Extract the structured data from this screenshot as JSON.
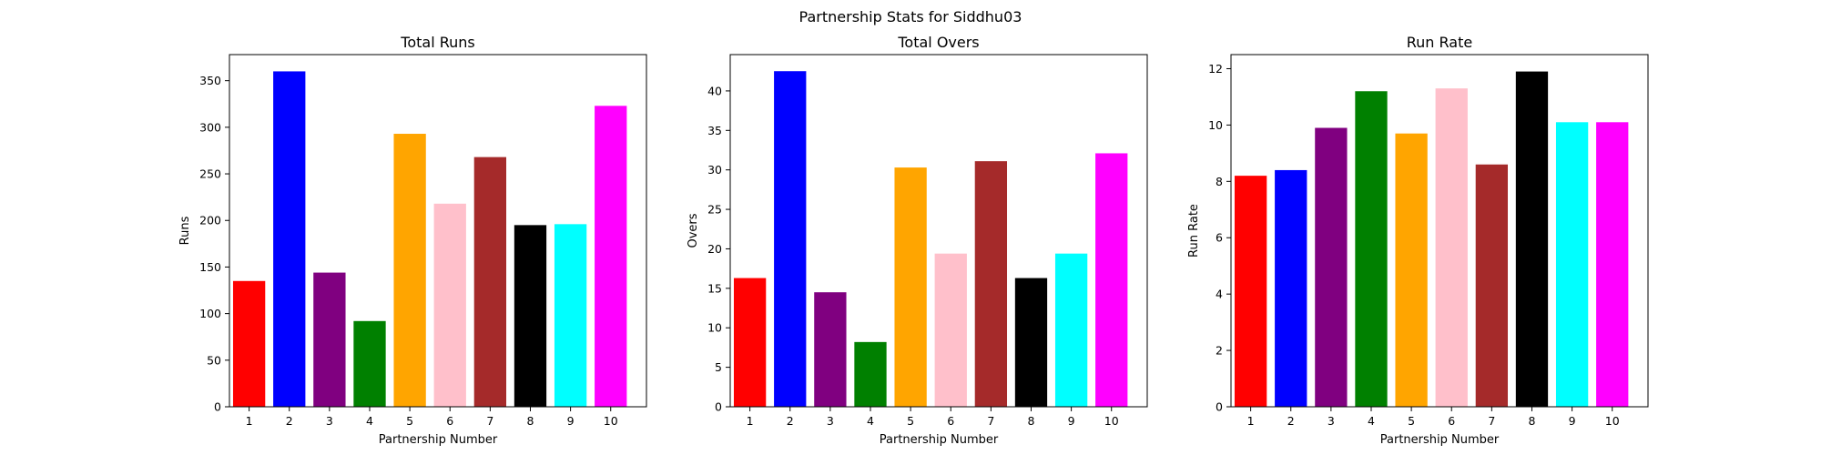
{
  "figure": {
    "suptitle": "Partnership Stats for Siddhu03",
    "bar_colors": [
      "#ff0000",
      "#0000ff",
      "#800080",
      "#008000",
      "#ffa500",
      "#ffc0cb",
      "#a52a2a",
      "#000000",
      "#00ffff",
      "#ff00ff"
    ]
  },
  "chart_data": [
    {
      "type": "bar",
      "title": "Total Runs",
      "xlabel": "Partnership Number",
      "ylabel": "Runs",
      "categories": [
        "1",
        "2",
        "3",
        "4",
        "5",
        "6",
        "7",
        "8",
        "9",
        "10"
      ],
      "values": [
        135,
        360,
        144,
        92,
        293,
        218,
        268,
        195,
        196,
        323
      ],
      "ylim": [
        0,
        378
      ],
      "yticks": [
        0,
        50,
        100,
        150,
        200,
        250,
        300,
        350
      ],
      "ytick_labels": [
        "0",
        "50",
        "100",
        "150",
        "200",
        "250",
        "300",
        "350"
      ],
      "grid": false,
      "legend": "none"
    },
    {
      "type": "bar",
      "title": "Total Overs",
      "xlabel": "Partnership Number",
      "ylabel": "Overs",
      "categories": [
        "1",
        "2",
        "3",
        "4",
        "5",
        "6",
        "7",
        "8",
        "9",
        "10"
      ],
      "values": [
        16.3,
        42.5,
        14.5,
        8.2,
        30.3,
        19.4,
        31.1,
        16.3,
        19.4,
        32.1
      ],
      "ylim": [
        0,
        44.6
      ],
      "yticks": [
        0,
        5,
        10,
        15,
        20,
        25,
        30,
        35,
        40
      ],
      "ytick_labels": [
        "0",
        "5",
        "10",
        "15",
        "20",
        "25",
        "30",
        "35",
        "40"
      ],
      "grid": false,
      "legend": "none"
    },
    {
      "type": "bar",
      "title": "Run Rate",
      "xlabel": "Partnership Number",
      "ylabel": "Run Rate",
      "categories": [
        "1",
        "2",
        "3",
        "4",
        "5",
        "6",
        "7",
        "8",
        "9",
        "10"
      ],
      "values": [
        8.2,
        8.4,
        9.9,
        11.2,
        9.7,
        11.3,
        8.6,
        11.9,
        10.1,
        10.1
      ],
      "ylim": [
        0,
        12.5
      ],
      "yticks": [
        0,
        2,
        4,
        6,
        8,
        10,
        12
      ],
      "ytick_labels": [
        "0",
        "2",
        "4",
        "6",
        "8",
        "10",
        "12"
      ],
      "grid": false,
      "legend": "none"
    }
  ]
}
